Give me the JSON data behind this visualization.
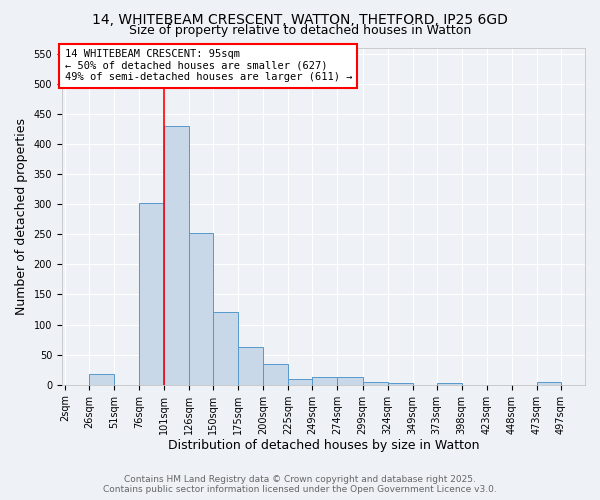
{
  "title1": "14, WHITEBEAM CRESCENT, WATTON, THETFORD, IP25 6GD",
  "title2": "Size of property relative to detached houses in Watton",
  "xlabel": "Distribution of detached houses by size in Watton",
  "ylabel": "Number of detached properties",
  "bin_labels": [
    "2sqm",
    "26sqm",
    "51sqm",
    "76sqm",
    "101sqm",
    "126sqm",
    "150sqm",
    "175sqm",
    "200sqm",
    "225sqm",
    "249sqm",
    "274sqm",
    "299sqm",
    "324sqm",
    "349sqm",
    "373sqm",
    "398sqm",
    "423sqm",
    "448sqm",
    "473sqm",
    "497sqm"
  ],
  "bin_edges": [
    2,
    26,
    51,
    76,
    101,
    126,
    150,
    175,
    200,
    225,
    249,
    274,
    299,
    324,
    349,
    373,
    398,
    423,
    448,
    473,
    497
  ],
  "bar_heights": [
    0,
    17,
    0,
    302,
    430,
    252,
    120,
    63,
    34,
    10,
    12,
    12,
    4,
    3,
    0,
    3,
    0,
    0,
    0,
    5,
    0
  ],
  "bar_color": "#c8d8e8",
  "bar_edge_color": "#5599cc",
  "vline_x": 101,
  "vline_color": "red",
  "annotation_text": "14 WHITEBEAM CRESCENT: 95sqm\n← 50% of detached houses are smaller (627)\n49% of semi-detached houses are larger (611) →",
  "annotation_box_color": "white",
  "annotation_box_edge_color": "red",
  "ylim": [
    0,
    560
  ],
  "yticks": [
    0,
    50,
    100,
    150,
    200,
    250,
    300,
    350,
    400,
    450,
    500,
    550
  ],
  "bg_color": "#eef2f6",
  "footer_text": "Contains HM Land Registry data © Crown copyright and database right 2025.\nContains public sector information licensed under the Open Government Licence v3.0.",
  "title_fontsize": 10,
  "subtitle_fontsize": 9,
  "axis_label_fontsize": 9,
  "tick_fontsize": 7,
  "annotation_fontsize": 7.5,
  "footer_fontsize": 6.5
}
